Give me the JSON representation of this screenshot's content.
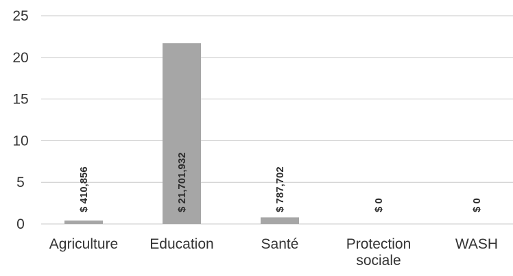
{
  "chart_data": {
    "type": "bar",
    "categories": [
      "Agriculture",
      "Education",
      "Santé",
      "Protection sociale",
      "WASH"
    ],
    "category_lines": [
      [
        "Agriculture"
      ],
      [
        "Education"
      ],
      [
        "Santé"
      ],
      [
        "Protection",
        "sociale"
      ],
      [
        "WASH"
      ]
    ],
    "values": [
      0.41,
      21.7,
      0.79,
      0,
      0
    ],
    "data_labels": [
      "$ 410,856",
      "$ 21,701,932",
      "$ 787,702",
      "$ 0",
      "$ 0"
    ],
    "yticks": [
      0,
      5,
      10,
      15,
      20,
      25
    ],
    "ylim": [
      0,
      25
    ],
    "grid": true,
    "legend": "none",
    "colors": {
      "bar": "#a6a6a6",
      "grid": "#c8c8c8",
      "text": "#333333"
    }
  }
}
